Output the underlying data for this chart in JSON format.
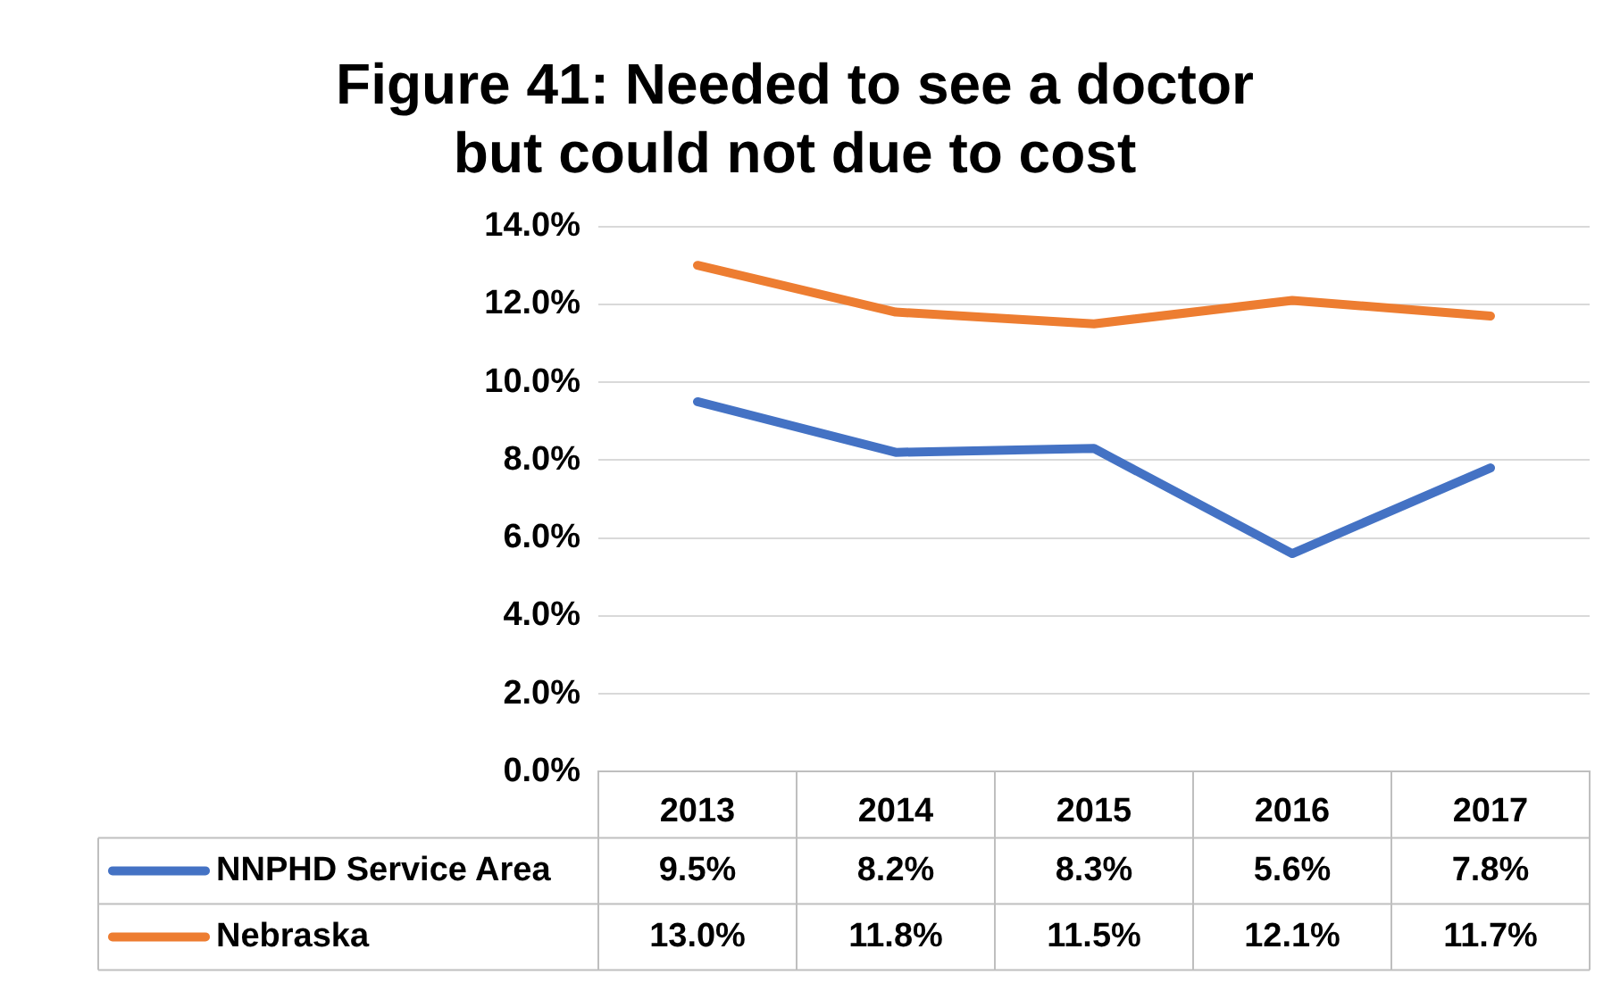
{
  "chart_data": {
    "type": "line",
    "title": "Figure 41: Needed to see a doctor but could not due to cost",
    "categories": [
      "2013",
      "2014",
      "2015",
      "2016",
      "2017"
    ],
    "series": [
      {
        "name": "NNPHD Service Area",
        "color": "#4472c4",
        "values": [
          9.5,
          8.2,
          8.3,
          5.6,
          7.8
        ],
        "value_labels": [
          "9.5%",
          "8.2%",
          "8.3%",
          "5.6%",
          "7.8%"
        ]
      },
      {
        "name": "Nebraska",
        "color": "#ed7d31",
        "values": [
          13.0,
          11.8,
          11.5,
          12.1,
          11.7
        ],
        "value_labels": [
          "13.0%",
          "11.8%",
          "11.5%",
          "12.1%",
          "11.7%"
        ]
      }
    ],
    "ylim": [
      0,
      14
    ],
    "yticks": [
      {
        "value": 0,
        "label": "0.0%"
      },
      {
        "value": 2,
        "label": "2.0%"
      },
      {
        "value": 4,
        "label": "4.0%"
      },
      {
        "value": 6,
        "label": "6.0%"
      },
      {
        "value": 8,
        "label": "8.0%"
      },
      {
        "value": 10,
        "label": "10.0%"
      },
      {
        "value": 12,
        "label": "12.0%"
      },
      {
        "value": 14,
        "label": "14.0%"
      }
    ],
    "grid": "y",
    "legend": "bottom",
    "marker": "none",
    "line_style": "solid",
    "data_labels": true
  }
}
